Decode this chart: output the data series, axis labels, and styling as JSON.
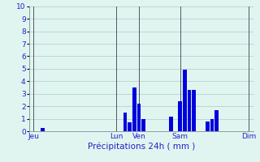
{
  "xlabel": "Précipitations 24h ( mm )",
  "ylim": [
    0,
    10
  ],
  "bar_color": "#0000dd",
  "background_color": "#e0f5f0",
  "grid_color": "#aacccc",
  "axis_line_color": "#888899",
  "vline_color": "#555566",
  "text_color": "#2222cc",
  "bar_data": [
    [
      2,
      0.3
    ],
    [
      20,
      1.5
    ],
    [
      21,
      0.7
    ],
    [
      22,
      3.5
    ],
    [
      23,
      2.2
    ],
    [
      24,
      1.0
    ],
    [
      30,
      1.2
    ],
    [
      32,
      2.4
    ],
    [
      33,
      4.9
    ],
    [
      34,
      3.3
    ],
    [
      35,
      3.3
    ],
    [
      38,
      0.8
    ],
    [
      39,
      1.0
    ],
    [
      40,
      1.7
    ]
  ],
  "total_bars": 48,
  "x_tick_positions": [
    0,
    18,
    23,
    32,
    47
  ],
  "x_tick_labels": [
    "Jeu",
    "Lun",
    "Ven",
    "Sam",
    "Dim"
  ],
  "vline_positions": [
    0,
    18,
    23,
    32,
    47
  ]
}
